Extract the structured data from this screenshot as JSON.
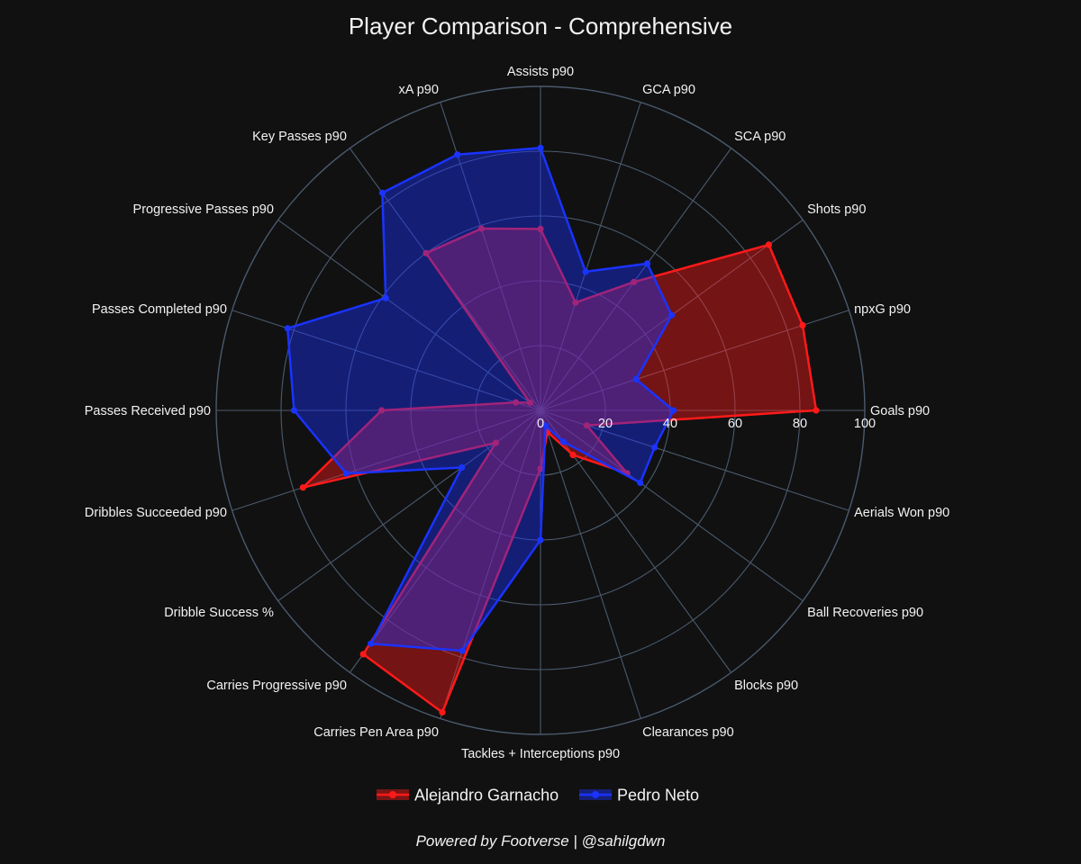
{
  "chart_data": {
    "type": "radar",
    "title": "Player Comparison - Comprehensive",
    "axes": [
      "Goals p90",
      "npxG p90",
      "Shots p90",
      "SCA p90",
      "GCA p90",
      "Assists p90",
      "xA p90",
      "Key Passes p90",
      "Progressive Passes p90",
      "Passes Completed p90",
      "Passes Received p90",
      "Dribbles Succeeded p90",
      "Dribble Success %",
      "Carries Progressive p90",
      "Carries Pen Area p90",
      "Tackles + Interceptions p90",
      "Clearances p90",
      "Blocks p90",
      "Ball Recoveries p90",
      "Aerials Won p90"
    ],
    "radial_range": [
      0,
      100
    ],
    "radial_ticks": [
      "0",
      "20",
      "40",
      "60",
      "80",
      "100"
    ],
    "series": [
      {
        "name": "Alejandro Garnacho",
        "color": "#ff1a1a",
        "values": [
          85,
          85,
          87,
          49,
          35,
          56,
          59,
          60,
          4,
          8,
          49,
          77,
          17,
          93,
          98,
          18,
          7,
          17,
          33,
          15
        ]
      },
      {
        "name": "Pedro Neto",
        "color": "#1a33ff",
        "values": [
          41,
          31,
          50,
          56,
          45,
          81,
          83,
          83,
          59,
          82,
          76,
          63,
          30,
          89,
          78,
          40,
          5,
          12,
          38,
          37
        ]
      }
    ],
    "legend_position": "bottom"
  },
  "footer": "Powered by Footverse | @sahilgdwn"
}
